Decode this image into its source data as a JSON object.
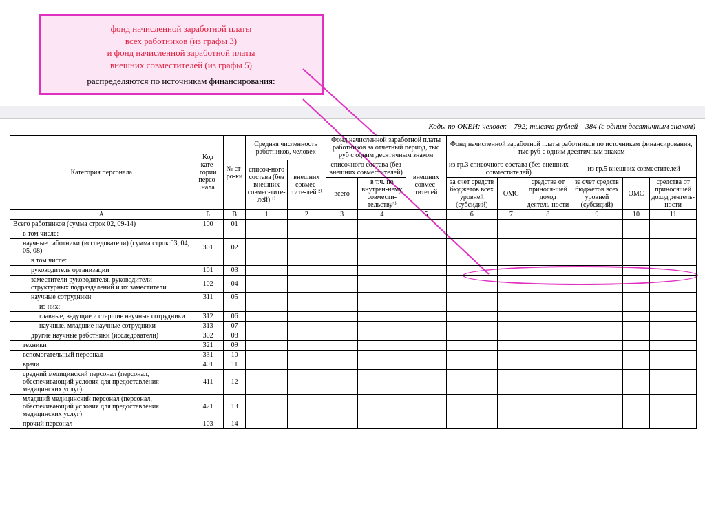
{
  "callout": {
    "line1": "фонд начисленной заработной платы",
    "line2": "всех работников  (из графы 3)",
    "line3": "и фонд начисленной  заработной платы",
    "line4": "внешних совместителей  (из графы 5)",
    "line5": "распределяются  по источникам финансирования:"
  },
  "okei": "Коды по ОКЕИ: человек – 792; тысяча рублей – 384 (с одним десятичным знаком)",
  "headers": {
    "categoria": "Категория персонала",
    "kod": "Код кате-гории персо-нала",
    "stroki": "№ ст-ро-ки",
    "sredn_group": "Средняя численность работников, человек",
    "col1": "списоч-ного состава (без внешних совмес-тите-лей) ¹⁾",
    "col2": "внешних совмес-тите-лей ²⁾",
    "fond_group": "Фонд начисленной заработной платы работников за отчетный период, тыс руб с одним десятичным знаком",
    "col3_4_group": "списочного состава (без внешних совместителей)",
    "col3": "всего",
    "col4": "в т.ч. по внутрен-нему совмести-тельству³⁾",
    "col5": "внешних совмес-тителей",
    "fin_group": "Фонд начисленной заработной платы работников по источникам финансирования, тыс руб с одним десятичным знаком",
    "gr3_group": "из гр.3 списочного состава (без внешних совместителей)",
    "gr5_group": "из гр.5 внешних совместителей",
    "c6": "за счет средств бюджетов всех уровней (субсидий)",
    "c7": "ОМС",
    "c8": "средства от принося-щей доход деятель-ности",
    "c9": "за счет средств бюджетов всех уровней (субсидий)",
    "c10": "ОМС",
    "c11": "средства от приносящей доход деятель-ности",
    "A": "А",
    "B": "Б",
    "V": "В",
    "n1": "1",
    "n2": "2",
    "n3": "3",
    "n4": "4",
    "n5": "5",
    "n6": "6",
    "n7": "7",
    "n8": "8",
    "n9": "9",
    "n10": "10",
    "n11": "11"
  },
  "rows": [
    {
      "label": "Всего работников\n(сумма строк 02, 09-14)",
      "indent": 0,
      "kod": "100",
      "line": "01"
    },
    {
      "label": "в том числе:",
      "indent": 1,
      "kod": "",
      "line": ""
    },
    {
      "label": "научные работники (исследователи)\n(сумма строк 03, 04, 05, 08)",
      "indent": 1,
      "kod": "301",
      "line": "02"
    },
    {
      "label": "в том числе:",
      "indent": 2,
      "kod": "",
      "line": ""
    },
    {
      "label": "руководитель организации",
      "indent": 2,
      "kod": "101",
      "line": "03"
    },
    {
      "label": "заместители руководителя, руководители структурных подразделений и их заместители",
      "indent": 2,
      "kod": "102",
      "line": "04"
    },
    {
      "label": "научные сотрудники",
      "indent": 2,
      "kod": "311",
      "line": "05"
    },
    {
      "label": "из них:",
      "indent": 3,
      "kod": "",
      "line": ""
    },
    {
      "label": "главные, ведущие и старшие научные сотрудники",
      "indent": 3,
      "kod": "312",
      "line": "06"
    },
    {
      "label": "научные, младшие научные  сотрудники",
      "indent": 3,
      "kod": "313",
      "line": "07"
    },
    {
      "label": "другие научные работники   (исследователи)",
      "indent": 2,
      "kod": "302",
      "line": "08"
    },
    {
      "label": "техники",
      "indent": 1,
      "kod": "321",
      "line": "09"
    },
    {
      "label": "вспомогательный персонал",
      "indent": 1,
      "kod": "331",
      "line": "10"
    },
    {
      "label": "врачи",
      "indent": 1,
      "kod": "401",
      "line": "11"
    },
    {
      "label": "средний медицинский персонал (персонал, обеспечивающий условия для предоставления медицинских услуг)",
      "indent": 1,
      "kod": "411",
      "line": "12"
    },
    {
      "label": "младший медицинский  персонал (персонал, обеспечивающий  условия для предоставления медицинских услуг)",
      "indent": 1,
      "kod": "421",
      "line": "13"
    },
    {
      "label": "прочий персонал",
      "indent": 1,
      "kod": "103",
      "line": "14"
    }
  ],
  "style": {
    "callout_border": "#e030c0",
    "callout_bg": "#fce6f6",
    "callout_text": "#e02040",
    "band_bg": "#efeff4",
    "line_color": "#e030c0",
    "ellipse_color": "#e030c0"
  }
}
